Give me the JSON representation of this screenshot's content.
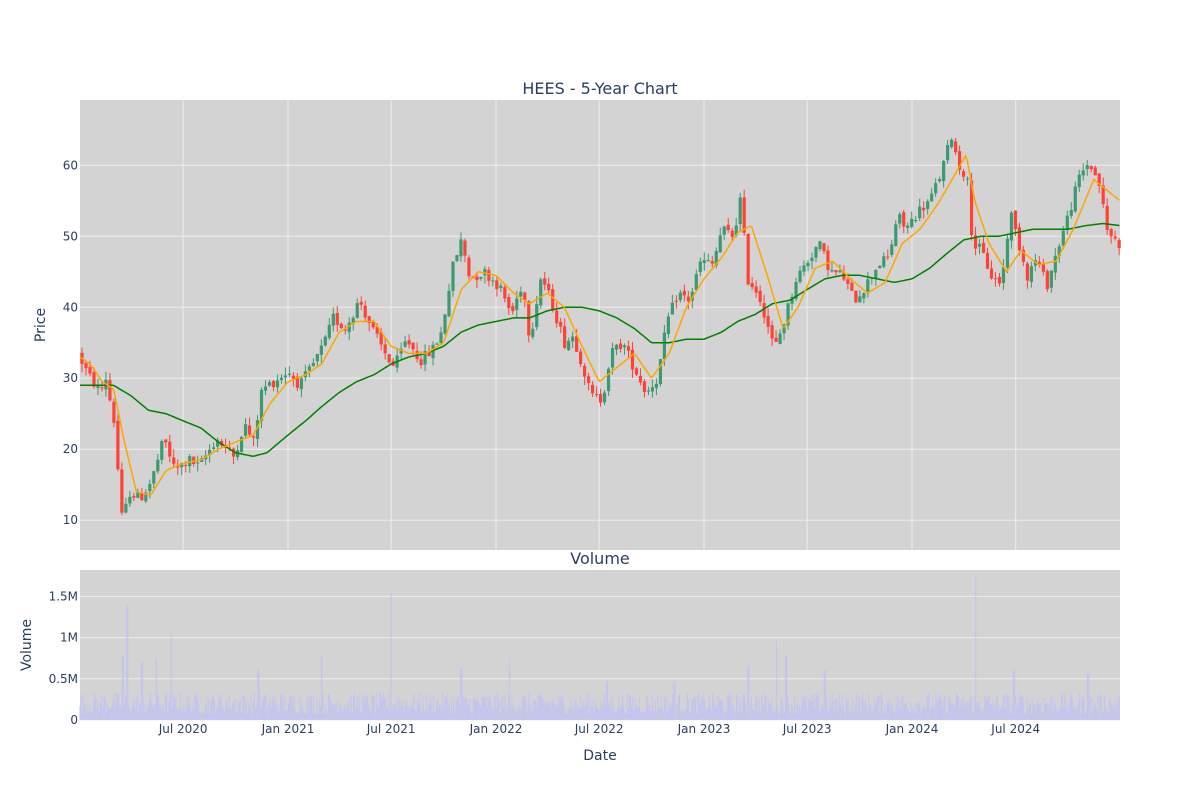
{
  "chart_data": [
    {
      "type": "candlestick",
      "title": "HEES - 5-Year Chart",
      "ylabel": "Price",
      "ylim": [
        5.8,
        69.2
      ],
      "xlim": [
        "2020-01-02",
        "2024-12-31"
      ],
      "yticks": [
        10,
        20,
        30,
        40,
        50,
        60
      ],
      "grid": true,
      "legend": "none",
      "colors": {
        "background": "#d3d3d3",
        "grid": "#eeeeee",
        "increasing": "#3d9970",
        "decreasing": "#ff4136",
        "ma_short": "#ffa500",
        "ma_long": "#008000"
      },
      "price_keypoints": [
        [
          "2020-01-02",
          33.5
        ],
        [
          "2020-01-20",
          30.5
        ],
        [
          "2020-02-10",
          28.0
        ],
        [
          "2020-02-20",
          30.0
        ],
        [
          "2020-03-05",
          24.0
        ],
        [
          "2020-03-20",
          9.5
        ],
        [
          "2020-04-01",
          14.0
        ],
        [
          "2020-04-20",
          13.0
        ],
        [
          "2020-05-10",
          15.5
        ],
        [
          "2020-06-01",
          21.5
        ],
        [
          "2020-06-20",
          17.0
        ],
        [
          "2020-07-15",
          18.5
        ],
        [
          "2020-08-01",
          17.5
        ],
        [
          "2020-09-01",
          21.5
        ],
        [
          "2020-10-01",
          19.0
        ],
        [
          "2020-10-20",
          23.5
        ],
        [
          "2020-11-05",
          21.0
        ],
        [
          "2020-11-20",
          28.5
        ],
        [
          "2020-12-10",
          29.5
        ],
        [
          "2021-01-05",
          31.0
        ],
        [
          "2021-01-25",
          29.0
        ],
        [
          "2021-02-15",
          31.5
        ],
        [
          "2021-03-10",
          35.0
        ],
        [
          "2021-03-25",
          38.5
        ],
        [
          "2021-04-15",
          37.0
        ],
        [
          "2021-05-10",
          41.0
        ],
        [
          "2021-06-01",
          37.0
        ],
        [
          "2021-06-20",
          34.0
        ],
        [
          "2021-07-10",
          31.5
        ],
        [
          "2021-08-01",
          35.5
        ],
        [
          "2021-08-25",
          32.5
        ],
        [
          "2021-09-15",
          34.0
        ],
        [
          "2021-10-01",
          36.5
        ],
        [
          "2021-10-20",
          45.5
        ],
        [
          "2021-11-05",
          49.5
        ],
        [
          "2021-11-20",
          44.0
        ],
        [
          "2021-12-15",
          45.0
        ],
        [
          "2022-01-10",
          43.0
        ],
        [
          "2022-02-01",
          39.0
        ],
        [
          "2022-02-20",
          43.5
        ],
        [
          "2022-03-05",
          35.5
        ],
        [
          "2022-03-25",
          44.5
        ],
        [
          "2022-04-15",
          40.0
        ],
        [
          "2022-05-05",
          35.0
        ],
        [
          "2022-05-20",
          36.0
        ],
        [
          "2022-06-05",
          32.0
        ],
        [
          "2022-06-20",
          27.5
        ],
        [
          "2022-07-10",
          27.0
        ],
        [
          "2022-07-25",
          33.5
        ],
        [
          "2022-08-15",
          35.0
        ],
        [
          "2022-09-01",
          32.0
        ],
        [
          "2022-09-25",
          28.0
        ],
        [
          "2022-10-15",
          30.0
        ],
        [
          "2022-11-01",
          38.0
        ],
        [
          "2022-11-20",
          42.0
        ],
        [
          "2022-12-10",
          41.0
        ],
        [
          "2022-12-30",
          46.5
        ],
        [
          "2023-01-20",
          46.0
        ],
        [
          "2023-02-05",
          51.0
        ],
        [
          "2023-02-25",
          50.0
        ],
        [
          "2023-03-10",
          55.5
        ],
        [
          "2023-03-22",
          44.0
        ],
        [
          "2023-04-10",
          42.0
        ],
        [
          "2023-04-25",
          38.0
        ],
        [
          "2023-05-08",
          34.0
        ],
        [
          "2023-05-25",
          38.0
        ],
        [
          "2023-06-15",
          44.0
        ],
        [
          "2023-07-05",
          46.5
        ],
        [
          "2023-07-25",
          49.0
        ],
        [
          "2023-08-15",
          45.0
        ],
        [
          "2023-09-05",
          44.5
        ],
        [
          "2023-09-25",
          41.0
        ],
        [
          "2023-10-15",
          43.0
        ],
        [
          "2023-11-05",
          46.0
        ],
        [
          "2023-11-25",
          47.0
        ],
        [
          "2023-12-10",
          53.0
        ],
        [
          "2023-12-25",
          51.0
        ],
        [
          "2024-01-15",
          53.5
        ],
        [
          "2024-02-05",
          55.0
        ],
        [
          "2024-02-25",
          59.0
        ],
        [
          "2024-03-15",
          64.5
        ],
        [
          "2024-03-25",
          60.0
        ],
        [
          "2024-04-10",
          58.5
        ],
        [
          "2024-04-20",
          49.0
        ],
        [
          "2024-05-05",
          48.0
        ],
        [
          "2024-05-25",
          44.0
        ],
        [
          "2024-06-10",
          43.5
        ],
        [
          "2024-06-25",
          53.5
        ],
        [
          "2024-07-10",
          49.0
        ],
        [
          "2024-07-25",
          44.5
        ],
        [
          "2024-08-10",
          47.0
        ],
        [
          "2024-08-28",
          43.0
        ],
        [
          "2024-09-15",
          48.0
        ],
        [
          "2024-10-05",
          53.0
        ],
        [
          "2024-10-25",
          58.5
        ],
        [
          "2024-11-10",
          60.5
        ],
        [
          "2024-11-30",
          57.0
        ],
        [
          "2024-12-10",
          51.0
        ],
        [
          "2024-12-31",
          49.0
        ]
      ],
      "ma_short_keypoints": [
        [
          "2020-01-02",
          33.0
        ],
        [
          "2020-01-20",
          32.0
        ],
        [
          "2020-02-10",
          29.5
        ],
        [
          "2020-03-01",
          28.5
        ],
        [
          "2020-03-20",
          21.0
        ],
        [
          "2020-04-10",
          14.0
        ],
        [
          "2020-05-05",
          13.5
        ],
        [
          "2020-06-01",
          17.0
        ],
        [
          "2020-07-01",
          18.0
        ],
        [
          "2020-08-01",
          18.5
        ],
        [
          "2020-09-01",
          20.0
        ],
        [
          "2020-10-01",
          21.0
        ],
        [
          "2020-11-01",
          22.0
        ],
        [
          "2020-12-01",
          26.5
        ],
        [
          "2021-01-01",
          29.5
        ],
        [
          "2021-02-01",
          30.5
        ],
        [
          "2021-03-01",
          32.0
        ],
        [
          "2021-04-01",
          36.5
        ],
        [
          "2021-05-01",
          38.0
        ],
        [
          "2021-06-01",
          38.0
        ],
        [
          "2021-07-01",
          34.5
        ],
        [
          "2021-08-01",
          33.5
        ],
        [
          "2021-09-01",
          33.5
        ],
        [
          "2021-10-01",
          35.0
        ],
        [
          "2021-11-01",
          42.5
        ],
        [
          "2021-12-01",
          45.0
        ],
        [
          "2022-01-01",
          44.5
        ],
        [
          "2022-02-01",
          42.0
        ],
        [
          "2022-03-01",
          40.5
        ],
        [
          "2022-04-01",
          42.0
        ],
        [
          "2022-05-01",
          40.0
        ],
        [
          "2022-06-01",
          34.5
        ],
        [
          "2022-07-01",
          29.5
        ],
        [
          "2022-08-01",
          31.5
        ],
        [
          "2022-09-01",
          33.5
        ],
        [
          "2022-10-01",
          30.0
        ],
        [
          "2022-11-01",
          33.5
        ],
        [
          "2022-12-01",
          40.0
        ],
        [
          "2023-01-01",
          44.0
        ],
        [
          "2023-02-01",
          47.0
        ],
        [
          "2023-03-01",
          50.5
        ],
        [
          "2023-03-25",
          51.5
        ],
        [
          "2023-04-20",
          45.0
        ],
        [
          "2023-05-20",
          37.0
        ],
        [
          "2023-06-15",
          40.0
        ],
        [
          "2023-07-15",
          45.5
        ],
        [
          "2023-08-15",
          46.5
        ],
        [
          "2023-09-15",
          44.0
        ],
        [
          "2023-10-15",
          42.0
        ],
        [
          "2023-11-15",
          43.5
        ],
        [
          "2023-12-15",
          49.0
        ],
        [
          "2024-01-15",
          51.0
        ],
        [
          "2024-02-15",
          54.5
        ],
        [
          "2024-03-15",
          58.5
        ],
        [
          "2024-04-05",
          61.5
        ],
        [
          "2024-04-20",
          55.0
        ],
        [
          "2024-05-15",
          49.0
        ],
        [
          "2024-06-15",
          45.0
        ],
        [
          "2024-07-10",
          48.0
        ],
        [
          "2024-08-10",
          46.0
        ],
        [
          "2024-09-10",
          46.5
        ],
        [
          "2024-10-10",
          51.0
        ],
        [
          "2024-11-15",
          58.0
        ],
        [
          "2024-12-31",
          55.0
        ]
      ],
      "ma_long_keypoints": [
        [
          "2020-01-02",
          29.0
        ],
        [
          "2020-03-01",
          29.0
        ],
        [
          "2020-04-01",
          27.5
        ],
        [
          "2020-05-01",
          25.5
        ],
        [
          "2020-06-01",
          25.0
        ],
        [
          "2020-07-01",
          24.0
        ],
        [
          "2020-08-01",
          23.0
        ],
        [
          "2020-09-01",
          21.0
        ],
        [
          "2020-10-01",
          19.5
        ],
        [
          "2020-11-01",
          19.0
        ],
        [
          "2020-11-25",
          19.5
        ],
        [
          "2021-01-01",
          22.0
        ],
        [
          "2021-02-01",
          24.0
        ],
        [
          "2021-03-01",
          26.0
        ],
        [
          "2021-04-01",
          28.0
        ],
        [
          "2021-05-01",
          29.5
        ],
        [
          "2021-06-01",
          30.5
        ],
        [
          "2021-07-01",
          32.0
        ],
        [
          "2021-08-01",
          33.0
        ],
        [
          "2021-09-01",
          33.5
        ],
        [
          "2021-10-01",
          34.5
        ],
        [
          "2021-11-01",
          36.5
        ],
        [
          "2021-12-01",
          37.5
        ],
        [
          "2022-01-01",
          38.0
        ],
        [
          "2022-02-01",
          38.5
        ],
        [
          "2022-03-01",
          38.5
        ],
        [
          "2022-04-01",
          39.5
        ],
        [
          "2022-05-01",
          40.0
        ],
        [
          "2022-06-01",
          40.0
        ],
        [
          "2022-07-01",
          39.5
        ],
        [
          "2022-08-01",
          38.5
        ],
        [
          "2022-09-01",
          37.0
        ],
        [
          "2022-10-01",
          35.0
        ],
        [
          "2022-11-01",
          35.0
        ],
        [
          "2022-12-01",
          35.5
        ],
        [
          "2023-01-01",
          35.5
        ],
        [
          "2023-02-01",
          36.5
        ],
        [
          "2023-03-01",
          38.0
        ],
        [
          "2023-04-01",
          39.0
        ],
        [
          "2023-05-01",
          40.5
        ],
        [
          "2023-06-01",
          41.0
        ],
        [
          "2023-07-01",
          42.5
        ],
        [
          "2023-08-01",
          44.0
        ],
        [
          "2023-09-01",
          44.5
        ],
        [
          "2023-10-01",
          44.5
        ],
        [
          "2023-11-01",
          44.0
        ],
        [
          "2023-12-01",
          43.5
        ],
        [
          "2024-01-01",
          44.0
        ],
        [
          "2024-02-01",
          45.5
        ],
        [
          "2024-03-01",
          47.5
        ],
        [
          "2024-04-01",
          49.5
        ],
        [
          "2024-05-01",
          50.0
        ],
        [
          "2024-06-01",
          50.0
        ],
        [
          "2024-07-01",
          50.5
        ],
        [
          "2024-08-01",
          51.0
        ],
        [
          "2024-09-01",
          51.0
        ],
        [
          "2024-10-01",
          51.0
        ],
        [
          "2024-11-01",
          51.5
        ],
        [
          "2024-12-01",
          51.8
        ],
        [
          "2024-12-31",
          51.5
        ]
      ]
    },
    {
      "type": "bar",
      "title": "Volume",
      "xlabel": "Date",
      "ylabel": "Volume",
      "ylim": [
        0,
        1820000
      ],
      "yticks": [
        0,
        500000,
        1000000,
        1500000
      ],
      "ytick_labels": [
        "0",
        "0.5M",
        "1M",
        "1.5M"
      ],
      "xticks": [
        "2020-07-01",
        "2021-01-01",
        "2021-07-01",
        "2022-01-01",
        "2022-07-01",
        "2023-01-01",
        "2023-07-01",
        "2024-01-01",
        "2024-07-01"
      ],
      "xtick_labels": [
        "Jul 2020",
        "Jan 2021",
        "Jul 2021",
        "Jan 2022",
        "Jul 2022",
        "Jan 2023",
        "Jul 2023",
        "Jan 2024",
        "Jul 2024"
      ],
      "grid": true,
      "color": "#c3c3f0",
      "base_volume": 240000,
      "spikes": [
        [
          "2020-03-25",
          1400000
        ],
        [
          "2020-03-17",
          780000
        ],
        [
          "2020-04-20",
          700000
        ],
        [
          "2020-05-15",
          750000
        ],
        [
          "2020-06-10",
          1050000
        ],
        [
          "2020-11-10",
          620000
        ],
        [
          "2021-03-01",
          780000
        ],
        [
          "2021-07-01",
          1530000
        ],
        [
          "2021-11-01",
          650000
        ],
        [
          "2022-01-25",
          750000
        ],
        [
          "2022-07-15",
          470000
        ],
        [
          "2022-11-10",
          460000
        ],
        [
          "2023-03-20",
          650000
        ],
        [
          "2023-05-08",
          960000
        ],
        [
          "2023-05-25",
          780000
        ],
        [
          "2023-08-01",
          600000
        ],
        [
          "2024-04-22",
          1760000
        ],
        [
          "2024-06-28",
          600000
        ],
        [
          "2024-11-05",
          560000
        ]
      ]
    }
  ]
}
